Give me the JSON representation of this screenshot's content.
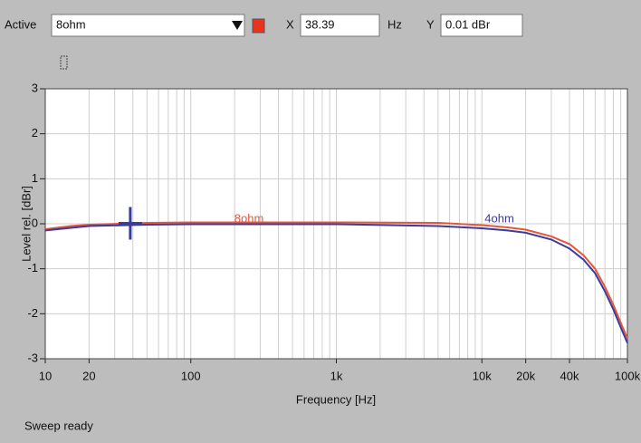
{
  "toolbar": {
    "active_label": "Active",
    "x_label": "X",
    "x_unit": "Hz",
    "y_label": "Y"
  },
  "status": "Sweep ready",
  "chart_data": {
    "type": "line",
    "xlabel": "Frequency [Hz]",
    "ylabel": "Level rel. [dBr]",
    "xscale": "log",
    "grid": true,
    "xlim": [
      10,
      100000
    ],
    "ylim": [
      -3,
      3
    ],
    "xticks": [
      10,
      20,
      100,
      {
        "value": 1000,
        "label": "1k"
      },
      {
        "value": 10000,
        "label": "10k"
      },
      {
        "value": 20000,
        "label": "20k"
      },
      {
        "value": 40000,
        "label": "40k"
      },
      {
        "value": 100000,
        "label": "100k"
      }
    ],
    "yticks": [
      -3,
      -2,
      -1,
      0,
      1,
      2,
      3
    ],
    "xgrid": [
      20,
      30,
      40,
      50,
      60,
      70,
      80,
      90,
      100,
      200,
      300,
      400,
      500,
      600,
      700,
      800,
      900,
      1000,
      2000,
      3000,
      4000,
      5000,
      6000,
      7000,
      8000,
      9000,
      10000,
      20000,
      30000,
      40000,
      50000,
      60000,
      70000,
      80000,
      90000
    ],
    "x": [
      10,
      15,
      20,
      50,
      100,
      1000,
      5000,
      10000,
      15000,
      20000,
      30000,
      40000,
      50000,
      60000,
      70000,
      80000,
      90000,
      100000
    ],
    "series": [
      {
        "name": "8ohm",
        "color": "#e8563a",
        "values": [
          -0.12,
          -0.05,
          -0.02,
          0.02,
          0.03,
          0.03,
          0.02,
          -0.03,
          -0.08,
          -0.13,
          -0.28,
          -0.45,
          -0.7,
          -1.0,
          -1.4,
          -1.8,
          -2.2,
          -2.55
        ]
      },
      {
        "name": "4ohm",
        "color": "#3b3b9c",
        "values": [
          -0.15,
          -0.09,
          -0.05,
          -0.02,
          -0.01,
          -0.01,
          -0.05,
          -0.1,
          -0.15,
          -0.2,
          -0.35,
          -0.55,
          -0.8,
          -1.1,
          -1.5,
          -1.9,
          -2.3,
          -2.65
        ]
      }
    ],
    "cursor": {
      "x": 38.39,
      "y": 0.01,
      "y_label": "0.01 dBr"
    }
  }
}
